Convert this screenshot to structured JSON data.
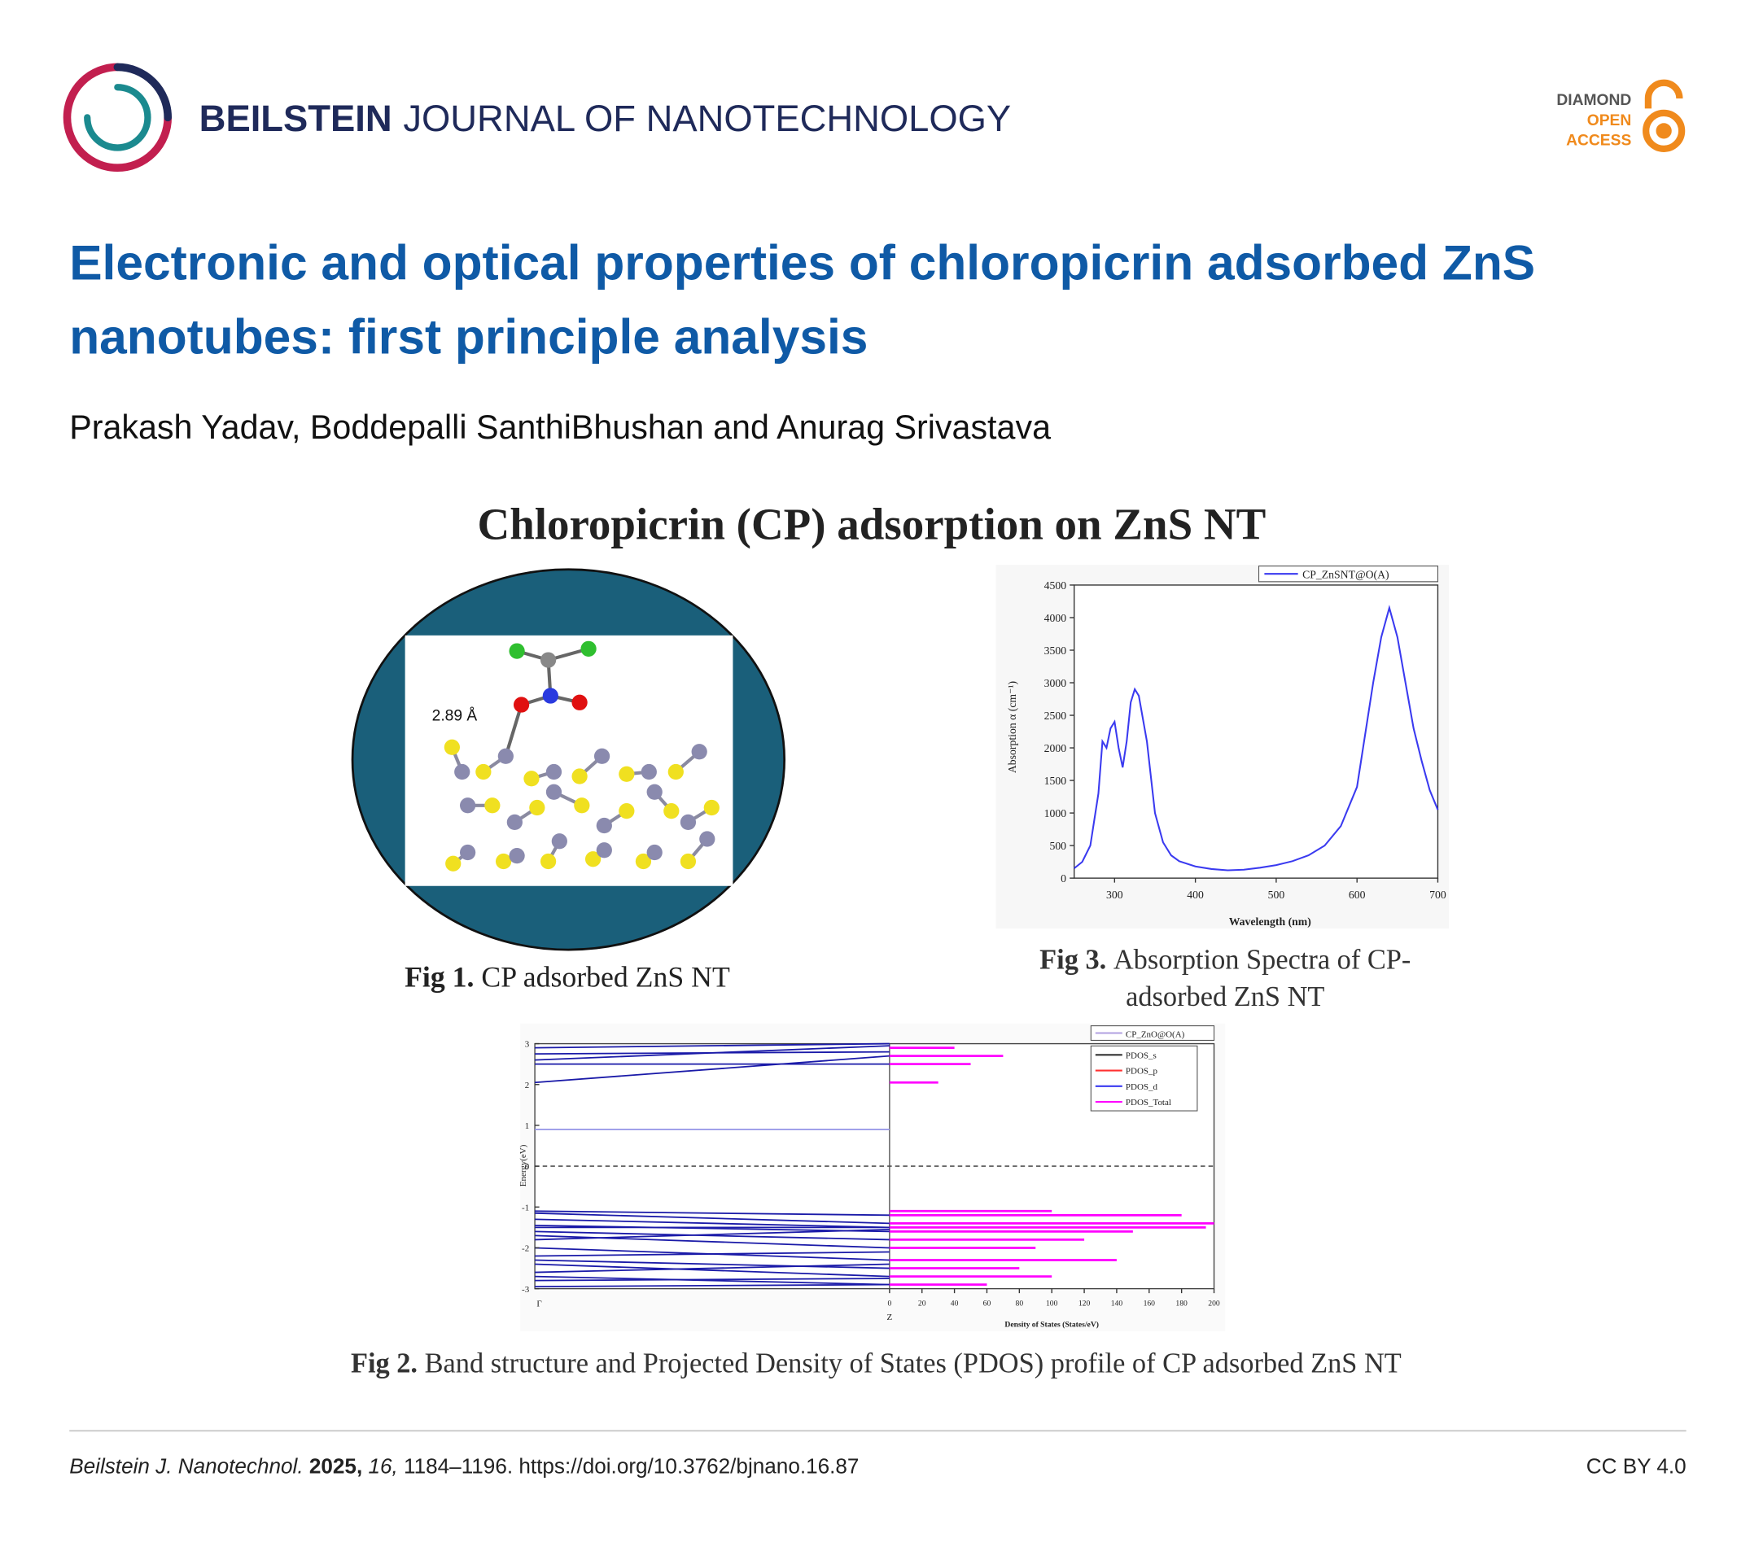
{
  "header": {
    "journal_bold": "BEILSTEIN",
    "journal_rest": "JOURNAL OF NANOTECHNOLOGY",
    "badge": [
      "DIAMOND",
      "OPEN",
      "ACCESS"
    ]
  },
  "article": {
    "title_lines": [
      "Electronic and optical properties of chloropicrin adsorbed ZnS",
      "nanotubes: first principle analysis"
    ],
    "authors": "Prakash Yadav, Boddepalli SanthiBhushan and Anurag Srivastava"
  },
  "graphical_abstract": {
    "title": "Chloropicrin (CP) adsorption on ZnS NT",
    "fig1": {
      "label": "Fig 1.",
      "caption": "CP adsorbed ZnS NT",
      "distance_label": "2.89 Å"
    },
    "fig3": {
      "label": "Fig 3.",
      "caption_lines": [
        "Absorption Spectra of CP-",
        "adsorbed ZnS NT"
      ],
      "chart": {
        "type": "line",
        "xlabel": "Wavelength (nm)",
        "ylabel": "Absorption α (cm⁻¹)",
        "x": [
          250,
          260,
          270,
          280,
          285,
          290,
          295,
          300,
          305,
          310,
          315,
          320,
          325,
          330,
          340,
          350,
          360,
          370,
          380,
          400,
          420,
          440,
          460,
          480,
          500,
          520,
          540,
          560,
          580,
          600,
          620,
          630,
          640,
          650,
          660,
          670,
          680,
          690,
          700
        ],
        "series": [
          {
            "name": "CP_ZnSNT@O(A)",
            "color": "#3a3af0",
            "values": [
              150,
              250,
              500,
              1300,
              2100,
              2000,
              2300,
              2400,
              2000,
              1700,
              2100,
              2700,
              2900,
              2800,
              2100,
              1000,
              550,
              350,
              260,
              180,
              140,
              120,
              130,
              160,
              200,
              260,
              350,
              500,
              800,
              1400,
              3000,
              3700,
              4150,
              3700,
              3000,
              2300,
              1800,
              1350,
              1050
            ]
          }
        ],
        "xlim": [
          250,
          700
        ],
        "ylim": [
          0,
          4500
        ],
        "xticks": [
          300,
          400,
          500,
          600,
          700
        ],
        "yticks": [
          0,
          500,
          1000,
          1500,
          2000,
          2500,
          3000,
          3500,
          4000,
          4500
        ]
      }
    },
    "fig2": {
      "label": "Fig 2.",
      "caption": "Band structure and Projected Density of States (PDOS) profile of CP adsorbed ZnS NT",
      "legend_title": "CP_ZnO@O(A)",
      "ylabel": "Energy(eV)",
      "xlabel": "Density of States (States/eV)",
      "ylim": [
        -3,
        3
      ],
      "yticks": [
        -3,
        -2,
        -1,
        0,
        1,
        2,
        3
      ],
      "xlim": [
        0,
        200
      ],
      "xticks": [
        0,
        20,
        40,
        60,
        80,
        100,
        120,
        140,
        160,
        180,
        200
      ],
      "k_labels": [
        "Γ",
        "Z"
      ],
      "pdos_legend": [
        {
          "name": "PDOS_s",
          "color": "#333333"
        },
        {
          "name": "PDOS_p",
          "color": "#ff3030"
        },
        {
          "name": "PDOS_d",
          "color": "#3a3af0"
        },
        {
          "name": "PDOS_Total",
          "color": "#ff00ff"
        }
      ],
      "bands": [
        [
          2.05,
          2.7
        ],
        [
          2.5,
          2.5
        ],
        [
          2.6,
          2.95
        ],
        [
          2.75,
          2.8
        ],
        [
          2.9,
          3.0
        ],
        [
          0.9,
          0.9
        ],
        [
          -1.1,
          -1.2
        ],
        [
          -1.15,
          -1.4
        ],
        [
          -1.3,
          -1.5
        ],
        [
          -1.45,
          -1.6
        ],
        [
          -1.5,
          -1.5
        ],
        [
          -1.6,
          -1.8
        ],
        [
          -1.7,
          -2.0
        ],
        [
          -1.8,
          -1.55
        ],
        [
          -2.0,
          -2.3
        ],
        [
          -2.2,
          -2.1
        ],
        [
          -2.3,
          -2.5
        ],
        [
          -2.4,
          -2.7
        ],
        [
          -2.6,
          -2.4
        ],
        [
          -2.7,
          -2.9
        ],
        [
          -2.8,
          -2.75
        ],
        [
          -2.95,
          -2.9
        ]
      ],
      "pdos_total": [
        [
          2.05,
          30
        ],
        [
          2.5,
          50
        ],
        [
          2.7,
          70
        ],
        [
          2.9,
          40
        ],
        [
          -1.1,
          100
        ],
        [
          -1.2,
          180
        ],
        [
          -1.4,
          200
        ],
        [
          -1.5,
          195
        ],
        [
          -1.6,
          150
        ],
        [
          -1.8,
          120
        ],
        [
          -2.0,
          90
        ],
        [
          -2.3,
          140
        ],
        [
          -2.5,
          80
        ],
        [
          -2.7,
          100
        ],
        [
          -2.9,
          60
        ]
      ]
    }
  },
  "footer": {
    "journal": "Beilstein J. Nanotechnol.",
    "year": "2025,",
    "volume": "16,",
    "pages_doi": "1184–1196. https://doi.org/10.3762/bjnano.16.87",
    "license": "CC BY 4.0"
  }
}
